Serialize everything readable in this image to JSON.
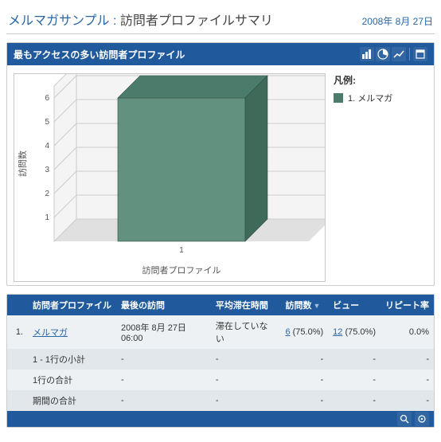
{
  "header": {
    "title_blue": "メルマガサンプル",
    "title_sep": " : ",
    "title_black": "訪問者プロファイルサマリ",
    "date": "2008年 8月 27日"
  },
  "chart_panel": {
    "title": "最もアクセスの多い訪問者プロファイル",
    "legend_title": "凡例:",
    "legend_item": "1. メルマガ",
    "legend_swatch_color": "#4b7c6b",
    "y_axis_label": "訪問数",
    "x_axis_label": "訪問者プロファイル",
    "chart": {
      "type": "3d-bar",
      "categories": [
        "1"
      ],
      "values": [
        6
      ],
      "ylim": [
        0,
        6.5
      ],
      "yticks": [
        1,
        2,
        3,
        4,
        5,
        6
      ],
      "bar_fill": "#63917f",
      "bar_top": "#4b7c6b",
      "bar_side": "#3f6a5a",
      "floor_light": "#f4f4f4",
      "floor_dark": "#e0e0e0",
      "grid_color": "#cccccc",
      "axis_label_fontsize": 11,
      "tick_fontsize": 10
    }
  },
  "table": {
    "columns": {
      "profile": "訪問者プロファイル",
      "last_visit": "最後の訪問",
      "avg_stay": "平均滞在時間",
      "visits": "訪問数",
      "views": "ビュー",
      "repeat": "リピート率"
    },
    "rows": [
      {
        "idx": "1.",
        "profile": "メルマガ",
        "profile_link": true,
        "last_visit": "2008年 8月 27日  06:00",
        "avg_stay": "滞在していない",
        "visits": "6",
        "visits_pct": "(75.0%)",
        "views": "12",
        "views_pct": "(75.0%)",
        "repeat": "0.0%"
      },
      {
        "idx": "",
        "profile": "1 - 1行の小計",
        "profile_link": false,
        "last_visit": "-",
        "avg_stay": "-",
        "visits": "-",
        "visits_pct": "",
        "views": "-",
        "views_pct": "",
        "repeat": "-"
      },
      {
        "idx": "",
        "profile": "1行の合計",
        "profile_link": false,
        "last_visit": "-",
        "avg_stay": "-",
        "visits": "-",
        "visits_pct": "",
        "views": "-",
        "views_pct": "",
        "repeat": "-"
      },
      {
        "idx": "",
        "profile": "期間の合計",
        "profile_link": false,
        "last_visit": "-",
        "avg_stay": "-",
        "visits": "-",
        "visits_pct": "",
        "views": "-",
        "views_pct": "",
        "repeat": "-"
      }
    ]
  }
}
